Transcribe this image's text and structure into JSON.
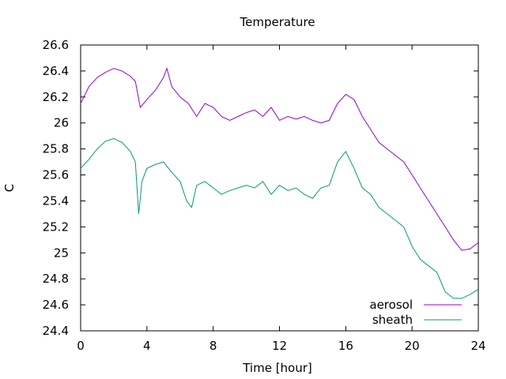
{
  "chart_data": {
    "type": "line",
    "title": "Temperature",
    "xlabel": "Time [hour]",
    "ylabel": "C",
    "xlim": [
      0,
      24
    ],
    "ylim": [
      24.4,
      26.6
    ],
    "xticks": [
      "0",
      "4",
      "8",
      "12",
      "16",
      "20",
      "24"
    ],
    "yticks": [
      "24.4",
      "24.6",
      "24.8",
      "25",
      "25.2",
      "25.4",
      "25.6",
      "25.8",
      "26",
      "26.2",
      "26.4",
      "26.6"
    ],
    "grid": false,
    "legend_position": "bottom-right",
    "series": [
      {
        "name": "aerosol",
        "color": "#9400d3",
        "x": [
          0,
          0.5,
          1,
          1.5,
          2,
          2.5,
          3,
          3.3,
          3.6,
          4,
          4.5,
          5,
          5.2,
          5.5,
          6,
          6.5,
          7,
          7.5,
          8,
          8.5,
          9,
          9.5,
          10,
          10.5,
          11,
          11.5,
          12,
          12.5,
          13,
          13.5,
          14,
          14.5,
          15,
          15.5,
          16,
          16.5,
          17,
          17.5,
          18,
          18.5,
          19,
          19.5,
          20,
          20.5,
          21,
          21.5,
          22,
          22.5,
          23,
          23.5,
          24
        ],
        "y": [
          26.15,
          26.28,
          26.35,
          26.39,
          26.42,
          26.4,
          26.36,
          26.32,
          26.12,
          26.18,
          26.25,
          26.35,
          26.42,
          26.28,
          26.2,
          26.15,
          26.05,
          26.15,
          26.12,
          26.05,
          26.02,
          26.05,
          26.08,
          26.1,
          26.05,
          26.12,
          26.02,
          26.05,
          26.03,
          26.05,
          26.02,
          26.0,
          26.02,
          26.15,
          26.22,
          26.18,
          26.05,
          25.95,
          25.85,
          25.8,
          25.75,
          25.7,
          25.6,
          25.5,
          25.4,
          25.3,
          25.2,
          25.1,
          25.02,
          25.03,
          25.08
        ]
      },
      {
        "name": "sheath",
        "color": "#009e73",
        "x": [
          0,
          0.5,
          1,
          1.5,
          2,
          2.5,
          3,
          3.3,
          3.5,
          3.7,
          4,
          4.5,
          5,
          5.5,
          6,
          6.4,
          6.7,
          7,
          7.5,
          8,
          8.5,
          9,
          9.5,
          10,
          10.5,
          11,
          11.5,
          12,
          12.5,
          13,
          13.5,
          14,
          14.5,
          15,
          15.5,
          16,
          16.5,
          17,
          17.5,
          18,
          18.5,
          19,
          19.5,
          20,
          20.5,
          21,
          21.5,
          22,
          22.5,
          23,
          23.5,
          24
        ],
        "y": [
          25.65,
          25.72,
          25.8,
          25.86,
          25.88,
          25.85,
          25.78,
          25.7,
          25.3,
          25.55,
          25.65,
          25.68,
          25.7,
          25.62,
          25.55,
          25.4,
          25.35,
          25.52,
          25.55,
          25.5,
          25.45,
          25.48,
          25.5,
          25.52,
          25.5,
          25.55,
          25.45,
          25.52,
          25.48,
          25.5,
          25.45,
          25.42,
          25.5,
          25.52,
          25.7,
          25.78,
          25.65,
          25.5,
          25.45,
          25.35,
          25.3,
          25.25,
          25.2,
          25.05,
          24.95,
          24.9,
          24.85,
          24.7,
          24.65,
          24.65,
          24.68,
          24.72
        ]
      }
    ]
  }
}
